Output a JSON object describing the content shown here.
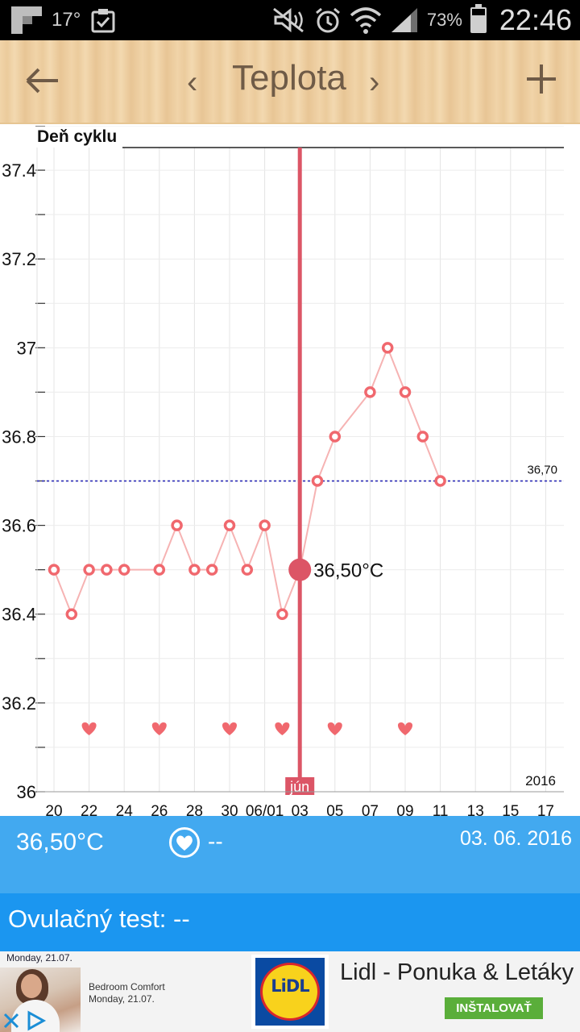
{
  "status_bar": {
    "temperature": "17°",
    "battery_percent": "73%",
    "time": "22:46"
  },
  "app_bar": {
    "title": "Teplota",
    "prev_label": "‹",
    "next_label": "›"
  },
  "chart": {
    "cycle_label": "Deň cyklu",
    "year_label": "2016",
    "month_label": "jún",
    "selected_label": "36,50°C",
    "threshold_label": "36,70",
    "colors": {
      "line": "#f6b3b3",
      "point": "#f0686e",
      "selected": "#dc5566",
      "threshold": "#2b2bb5"
    }
  },
  "chart_data": {
    "type": "line",
    "ylim": [
      36.0,
      37.5
    ],
    "y_ticks": [
      "36",
      "36.2",
      "36.4",
      "36.6",
      "36.8",
      "37",
      "37.2",
      "37.4"
    ],
    "x_tick_labels": [
      "20",
      "22",
      "24",
      "26",
      "28",
      "30",
      "06/01",
      "03",
      "05",
      "07",
      "09",
      "11",
      "13",
      "15",
      "17"
    ],
    "series": [
      {
        "x": [
          "20",
          "21",
          "22",
          "23",
          "24",
          "26",
          "27",
          "28",
          "29",
          "30",
          "31",
          "06/01",
          "02",
          "03",
          "04",
          "05",
          "07",
          "08",
          "09",
          "10",
          "11"
        ],
        "values": [
          36.5,
          36.4,
          36.5,
          36.5,
          36.5,
          36.5,
          36.6,
          36.5,
          36.5,
          36.6,
          36.5,
          36.6,
          36.4,
          36.5,
          36.7,
          36.8,
          36.9,
          37.0,
          36.9,
          36.8,
          36.7
        ]
      }
    ],
    "threshold": 36.7,
    "selected": {
      "x": "03",
      "value": 36.5
    },
    "heart_days": [
      "22",
      "26",
      "30",
      "02",
      "05",
      "09"
    ],
    "grid": true
  },
  "info": {
    "temperature": "36,50°C",
    "heart_value": "--",
    "date": "03. 06. 2016"
  },
  "ovulation": {
    "text": "Ovulačný test: --"
  },
  "ad": {
    "small_date": "Monday, 21.07.",
    "title": "Bedroom Comfort",
    "subtitle": "Monday, 21.07.",
    "logo_text": "LiDL",
    "name": "Lidl - Ponuka & Letáky",
    "install_label": "INŠTALOVAŤ"
  }
}
